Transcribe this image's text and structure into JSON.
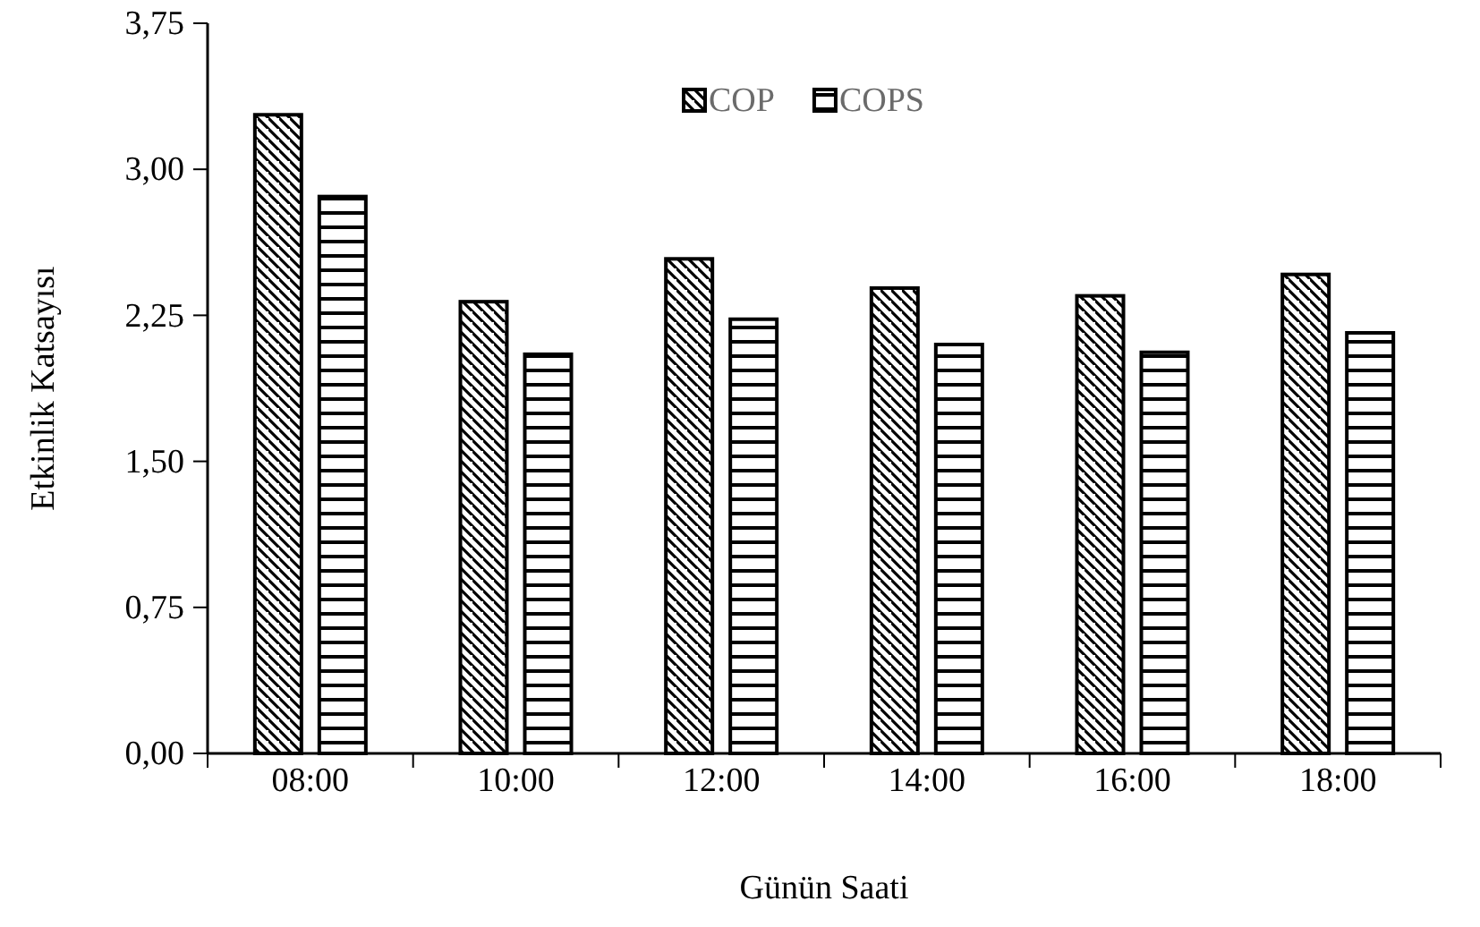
{
  "chart_data": {
    "type": "bar",
    "xlabel": "Günün Saati",
    "ylabel": "Etkinlik Katsayısı",
    "categories": [
      "08:00",
      "10:00",
      "12:00",
      "14:00",
      "16:00",
      "18:00"
    ],
    "series": [
      {
        "name": "COP",
        "color": "#000000",
        "values": [
          3.28,
          2.32,
          2.54,
          2.39,
          2.35,
          2.46
        ]
      },
      {
        "name": "COPS",
        "color": "#000000",
        "values": [
          2.86,
          2.05,
          2.23,
          2.1,
          2.06,
          2.16
        ]
      }
    ],
    "ylim": [
      0,
      3.75
    ],
    "yticks": [
      {
        "value": 0,
        "label": "0,00"
      },
      {
        "value": 0.75,
        "label": "0,75"
      },
      {
        "value": 1.5,
        "label": "1,50"
      },
      {
        "value": 2.25,
        "label": "2,25"
      },
      {
        "value": 3,
        "label": "3,00"
      },
      {
        "value": 3.75,
        "label": "3,75"
      }
    ],
    "grid": false,
    "legend": "top"
  }
}
